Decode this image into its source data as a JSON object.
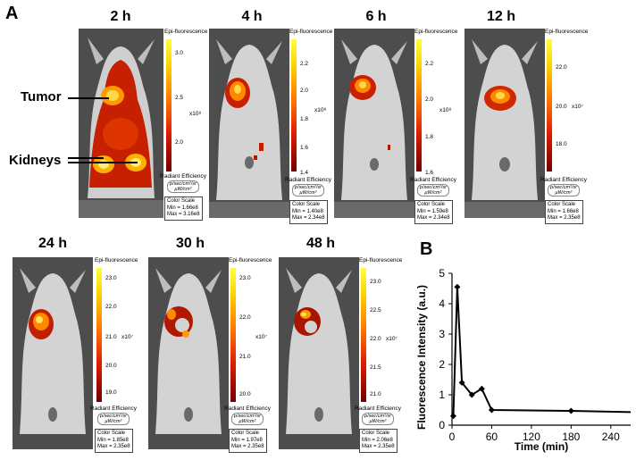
{
  "panel_a_label": "A",
  "panel_b_label": "B",
  "callouts": {
    "tumor": "Tumor",
    "kidneys": "Kidneys"
  },
  "colorbar_common": {
    "title": "Epi-fluorescence",
    "radiant_label": "Radiant Efficiency",
    "radiant_units_top": "p/sec/cm²/sr",
    "radiant_units_bottom": "μW/cm²",
    "color_scale_label": "Color Scale"
  },
  "images": [
    {
      "time": "2 h",
      "ticks": [
        "3.0",
        "2.5",
        "2.0"
      ],
      "unit": "x10⁸",
      "min": "Min = 1.66e8",
      "max": "Max = 3.16e8"
    },
    {
      "time": "4 h",
      "ticks": [
        "2.2",
        "2.0",
        "1.8",
        "1.6",
        "1.4"
      ],
      "unit": "x10⁸",
      "min": "Min = 1.40e8",
      "max": "Max = 2.34e8"
    },
    {
      "time": "6 h",
      "ticks": [
        "2.2",
        "2.0",
        "1.8",
        "1.6"
      ],
      "unit": "x10⁸",
      "min": "Min = 1.59e8",
      "max": "Max = 2.34e8"
    },
    {
      "time": "12 h",
      "ticks": [
        "22.0",
        "20.0",
        "18.0"
      ],
      "unit": "x10⁷",
      "min": "Min = 1.66e8",
      "max": "Max = 2.35e8"
    },
    {
      "time": "24 h",
      "ticks": [
        "23.0",
        "22.0",
        "21.0",
        "20.0",
        "19.0"
      ],
      "unit": "x10⁷",
      "min": "Min = 1.85e8",
      "max": "Max = 2.35e8"
    },
    {
      "time": "30 h",
      "ticks": [
        "23.0",
        "22.0",
        "21.0",
        "20.0"
      ],
      "unit": "x10⁷",
      "min": "Min = 1.97e8",
      "max": "Max = 2.35e8"
    },
    {
      "time": "48 h",
      "ticks": [
        "23.0",
        "22.5",
        "22.0",
        "21.5",
        "21.0"
      ],
      "unit": "x10⁷",
      "min": "Min = 2.06e8",
      "max": "Max = 2.35e8"
    }
  ],
  "chart_data": {
    "type": "line",
    "title": "",
    "xlabel": "Time (min)",
    "ylabel": "Fluorescence Intensity (a.u.)",
    "xlim": [
      0,
      270
    ],
    "ylim": [
      0,
      5
    ],
    "xticks": [
      0,
      60,
      120,
      180,
      240
    ],
    "yticks": [
      0,
      1,
      2,
      3,
      4,
      5
    ],
    "grid": false,
    "x": [
      2,
      8,
      15,
      30,
      45,
      60,
      180,
      270
    ],
    "y": [
      0.3,
      4.55,
      1.4,
      1.0,
      1.2,
      0.5,
      0.47,
      0.43
    ],
    "marker_x": [
      2,
      8,
      15,
      30,
      45,
      60,
      180
    ]
  }
}
